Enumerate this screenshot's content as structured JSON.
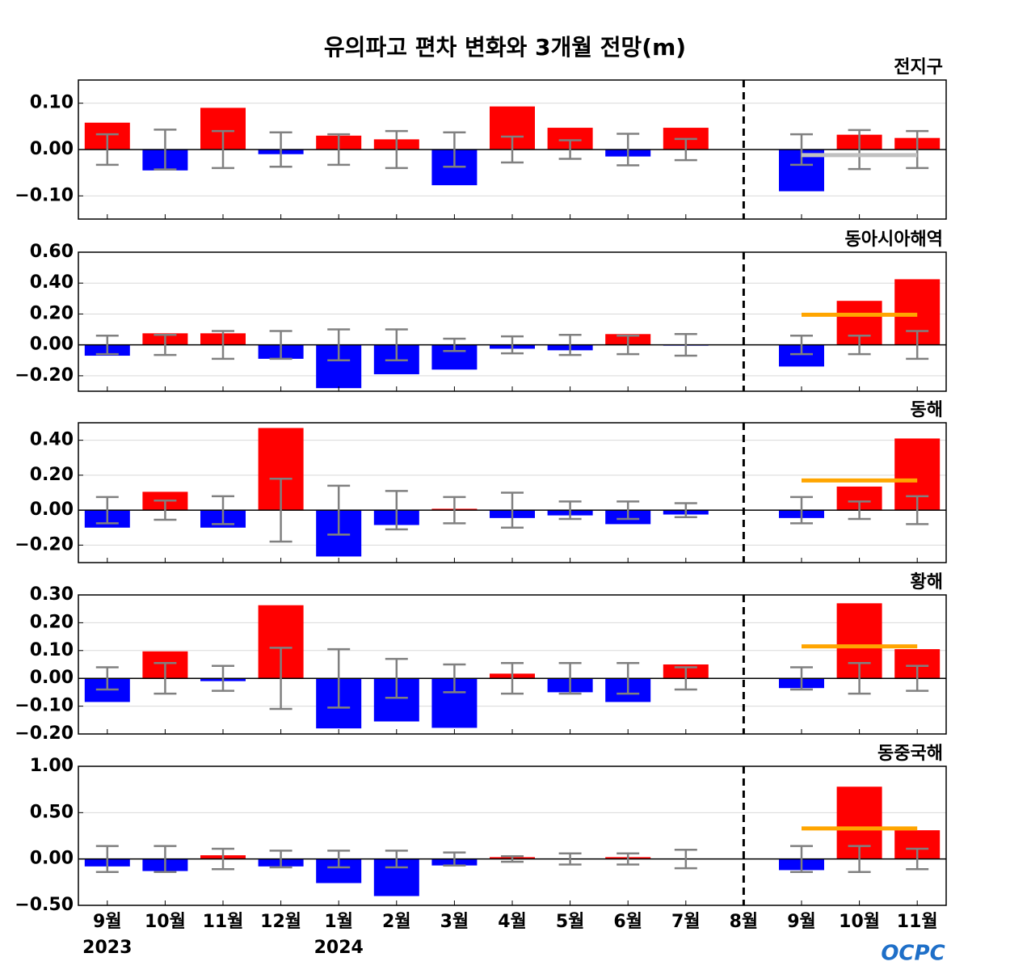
{
  "title": "유의파고 편차 변화와 3개월 전망(m)",
  "categories": [
    "9월",
    "10월",
    "11월",
    "12월",
    "1월",
    "2월",
    "3월",
    "4월",
    "5월",
    "6월",
    "7월",
    "8월",
    "9월",
    "10월",
    "11월"
  ],
  "year_labels": [
    "2023",
    null,
    null,
    null,
    "2024",
    null,
    null,
    null,
    null,
    null,
    null,
    null,
    null,
    null,
    null
  ],
  "logo": "OCPC",
  "bar_colors": {
    "positive": "#ff0000",
    "negative": "#0000ff"
  },
  "error_color": "#808080",
  "grid": true,
  "chart_data": [
    {
      "type": "bar",
      "title": "전지구",
      "values": [
        0.058,
        -0.045,
        0.09,
        -0.01,
        0.03,
        0.022,
        -0.077,
        0.093,
        0.047,
        -0.015,
        0.047,
        0,
        -0.09,
        0.032,
        0.025
      ],
      "errors": [
        0.033,
        0.043,
        0.04,
        0.037,
        0.033,
        0.04,
        0.037,
        0.028,
        0.02,
        0.034,
        0.023,
        null,
        0.033,
        0.042,
        0.04
      ],
      "forecast": {
        "value": -0.012,
        "color": "#c0c0c0"
      },
      "ylim": [
        -0.15,
        0.15
      ],
      "yticks": [
        {
          "value": -0.1,
          "label": "−0.10"
        },
        {
          "value": 0,
          "label": "0.00"
        },
        {
          "value": 0.1,
          "label": "0.10"
        }
      ]
    },
    {
      "type": "bar",
      "title": "동아시아해역",
      "values": [
        -0.07,
        0.075,
        0.075,
        -0.09,
        -0.28,
        -0.19,
        -0.16,
        -0.025,
        -0.035,
        0.07,
        -0.005,
        0,
        -0.14,
        0.285,
        0.425
      ],
      "errors": [
        0.06,
        0.065,
        0.09,
        0.09,
        0.1,
        0.1,
        0.04,
        0.055,
        0.065,
        0.06,
        0.07,
        null,
        0.06,
        0.06,
        0.09
      ],
      "forecast": {
        "value": 0.195,
        "color": "#ffa500"
      },
      "ylim": [
        -0.3,
        0.6
      ],
      "yticks": [
        {
          "value": -0.2,
          "label": "−0.20"
        },
        {
          "value": 0,
          "label": "0.00"
        },
        {
          "value": 0.2,
          "label": "0.20"
        },
        {
          "value": 0.4,
          "label": "0.40"
        },
        {
          "value": 0.6,
          "label": "0.60"
        }
      ]
    },
    {
      "type": "bar",
      "title": "동해",
      "values": [
        -0.1,
        0.105,
        -0.1,
        0.47,
        -0.265,
        -0.085,
        0.008,
        -0.045,
        -0.03,
        -0.08,
        -0.025,
        0,
        -0.045,
        0.135,
        0.41
      ],
      "errors": [
        0.075,
        0.055,
        0.08,
        0.18,
        0.14,
        0.11,
        0.075,
        0.1,
        0.05,
        0.05,
        0.04,
        null,
        0.075,
        0.05,
        0.08
      ],
      "forecast": {
        "value": 0.17,
        "color": "#ffa500"
      },
      "ylim": [
        -0.3,
        0.5
      ],
      "yticks": [
        {
          "value": -0.2,
          "label": "−0.20"
        },
        {
          "value": 0,
          "label": "0.00"
        },
        {
          "value": 0.2,
          "label": "0.20"
        },
        {
          "value": 0.4,
          "label": "0.40"
        }
      ]
    },
    {
      "type": "bar",
      "title": "황해",
      "values": [
        -0.085,
        0.097,
        -0.01,
        0.263,
        -0.18,
        -0.155,
        -0.178,
        0.017,
        -0.05,
        -0.085,
        0.05,
        0,
        -0.035,
        0.27,
        0.105
      ],
      "errors": [
        0.04,
        0.055,
        0.045,
        0.11,
        0.105,
        0.07,
        0.05,
        0.055,
        0.055,
        0.055,
        0.04,
        null,
        0.04,
        0.055,
        0.045
      ],
      "forecast": {
        "value": 0.115,
        "color": "#ffa500"
      },
      "ylim": [
        -0.2,
        0.3
      ],
      "yticks": [
        {
          "value": -0.2,
          "label": "−0.20"
        },
        {
          "value": -0.1,
          "label": "−0.10"
        },
        {
          "value": 0,
          "label": "0.00"
        },
        {
          "value": 0.1,
          "label": "0.10"
        },
        {
          "value": 0.2,
          "label": "0.20"
        },
        {
          "value": 0.3,
          "label": "0.30"
        }
      ]
    },
    {
      "type": "bar",
      "title": "동중국해",
      "values": [
        -0.08,
        -0.13,
        0.04,
        -0.08,
        -0.26,
        -0.4,
        -0.07,
        0.02,
        0,
        0.02,
        0,
        0,
        -0.12,
        0.78,
        0.31
      ],
      "errors": [
        0.14,
        0.14,
        0.11,
        0.09,
        0.09,
        0.09,
        0.07,
        0.03,
        0.06,
        0.06,
        0.1,
        null,
        0.14,
        0.14,
        0.11
      ],
      "forecast": {
        "value": 0.33,
        "color": "#ffa500"
      },
      "ylim": [
        -0.5,
        1.0
      ],
      "yticks": [
        {
          "value": -0.5,
          "label": "−0.50"
        },
        {
          "value": 0,
          "label": "0.00"
        },
        {
          "value": 0.5,
          "label": "0.50"
        },
        {
          "value": 1.0,
          "label": "1.00"
        }
      ]
    }
  ]
}
